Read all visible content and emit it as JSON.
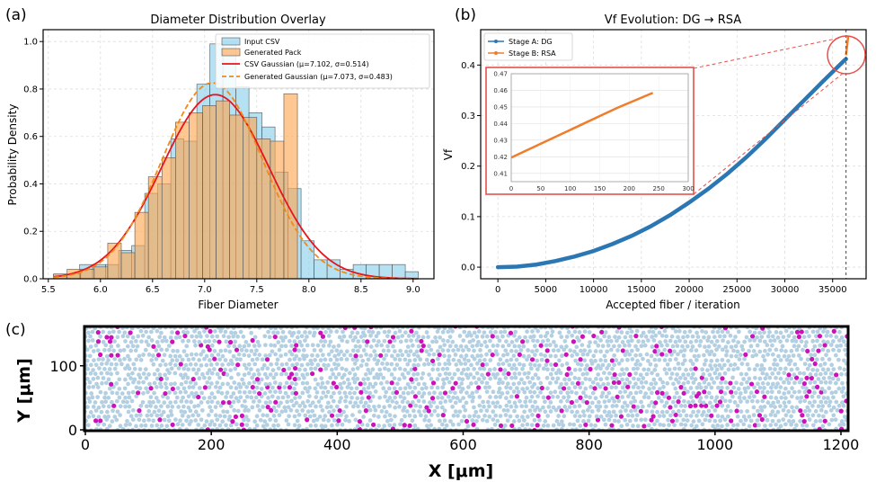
{
  "colors": {
    "input_csv": "#87ceeb",
    "generated_pack": "#ffa54f",
    "csv_gaussian": "#e8141c",
    "gen_gaussian": "#ee8b1a",
    "stage_a": "#2a77b4",
    "stage_b": "#ef7d2b",
    "zoom": "#e8504a",
    "fiber": "#b3cfe2",
    "fiber_highlight": "#cc11bb"
  },
  "chart_data": [
    {
      "panel_label": "(a)",
      "type": "bar",
      "title": "Diameter Distribution Overlay",
      "xlabel": "Fiber Diameter",
      "ylabel": "Probability Density",
      "xlim": [
        5.45,
        9.2
      ],
      "ylim": [
        0,
        1.05
      ],
      "xticks": [
        5.5,
        6.0,
        6.5,
        7.0,
        7.5,
        8.0,
        8.5,
        9.0
      ],
      "xtick_labels": [
        "5.5",
        "6.0",
        "6.5",
        "7.0",
        "7.5",
        "8.0",
        "8.5",
        "9.0"
      ],
      "yticks": [
        0.0,
        0.2,
        0.4,
        0.6,
        0.8,
        1.0
      ],
      "ytick_labels": [
        "0.0",
        "0.2",
        "0.4",
        "0.6",
        "0.8",
        "1.0"
      ],
      "grid": true,
      "legend_position": "top-right",
      "legend": [
        "Input CSV",
        "Generated Pack",
        "CSV Gaussian (μ=7.102, σ=0.514)",
        "Generated Gaussian (μ=7.073, σ=0.483)"
      ],
      "series": [
        {
          "name": "Input CSV",
          "bin_edges": [
            5.55,
            5.675,
            5.8,
            5.925,
            6.05,
            6.175,
            6.3,
            6.425,
            6.55,
            6.675,
            6.8,
            6.925,
            7.05,
            7.175,
            7.3,
            7.425,
            7.55,
            7.675,
            7.8,
            7.925,
            8.05,
            8.175,
            8.3,
            8.425,
            8.55,
            8.675,
            8.8,
            8.925,
            9.05
          ],
          "values": [
            0.02,
            0.02,
            0.06,
            0.06,
            0.06,
            0.12,
            0.14,
            0.36,
            0.4,
            0.59,
            0.58,
            0.82,
            0.99,
            1.0,
            0.81,
            0.7,
            0.64,
            0.45,
            0.38,
            0.16,
            0.08,
            0.08,
            0.04,
            0.06,
            0.06,
            0.06,
            0.06,
            0.03
          ]
        },
        {
          "name": "Generated Pack",
          "bin_edges": [
            5.55,
            5.68,
            5.81,
            5.94,
            6.07,
            6.2,
            6.33,
            6.46,
            6.59,
            6.72,
            6.85,
            6.98,
            7.11,
            7.24,
            7.37,
            7.5,
            7.63,
            7.76,
            7.89
          ],
          "values": [
            0.02,
            0.04,
            0.04,
            0.05,
            0.15,
            0.11,
            0.28,
            0.43,
            0.51,
            0.66,
            0.7,
            0.73,
            0.75,
            0.69,
            0.68,
            0.59,
            0.58,
            0.78
          ]
        },
        {
          "name": "CSV Gaussian (μ=7.102, σ=0.514)",
          "mu": 7.102,
          "sigma": 0.514
        },
        {
          "name": "Generated Gaussian (μ=7.073, σ=0.483)",
          "mu": 7.073,
          "sigma": 0.483
        }
      ]
    },
    {
      "panel_label": "(b)",
      "type": "line",
      "title": "Vf Evolution: DG → RSA",
      "xlabel": "Accepted fiber / iteration",
      "ylabel": "Vf",
      "xlim": [
        -1800,
        38500
      ],
      "ylim": [
        -0.023,
        0.47
      ],
      "xticks": [
        0,
        5000,
        10000,
        15000,
        20000,
        25000,
        30000,
        35000
      ],
      "xtick_labels": [
        "0",
        "5000",
        "10000",
        "15000",
        "20000",
        "25000",
        "30000",
        "35000"
      ],
      "yticks": [
        0.0,
        0.1,
        0.2,
        0.3,
        0.4
      ],
      "ytick_labels": [
        "0.0",
        "0.1",
        "0.2",
        "0.3",
        "0.4"
      ],
      "grid": true,
      "legend_position": "top-left",
      "legend": [
        "Stage A: DG",
        "Stage B: RSA"
      ],
      "vertical_marker_x": 36400,
      "series": [
        {
          "name": "Stage A: DG",
          "x": [
            0,
            2000,
            4000,
            6000,
            8000,
            10000,
            12000,
            14000,
            16000,
            18000,
            20000,
            22000,
            24000,
            26000,
            28000,
            30000,
            32000,
            34000,
            36000,
            36400
          ],
          "values": [
            0.0,
            0.001,
            0.005,
            0.012,
            0.021,
            0.032,
            0.046,
            0.062,
            0.081,
            0.103,
            0.128,
            0.155,
            0.185,
            0.218,
            0.254,
            0.292,
            0.33,
            0.368,
            0.405,
            0.412
          ]
        },
        {
          "name": "Stage B: RSA",
          "x": [
            36400,
            36460,
            36520,
            36580,
            36640
          ],
          "values": [
            0.4195,
            0.4295,
            0.4395,
            0.4495,
            0.4585
          ]
        }
      ],
      "inset": {
        "xlim": [
          0,
          300
        ],
        "ylim": [
          0.405,
          0.47
        ],
        "xticks": [
          0,
          50,
          100,
          150,
          200,
          250,
          300
        ],
        "xtick_labels": [
          "0",
          "50",
          "100",
          "150",
          "200",
          "250",
          "300"
        ],
        "yticks": [
          0.41,
          0.42,
          0.43,
          0.44,
          0.45,
          0.46,
          0.47
        ],
        "ytick_labels": [
          "0.41",
          "0.42",
          "0.43",
          "0.44",
          "0.45",
          "0.46",
          "0.47"
        ],
        "series": {
          "name": "Stage B: RSA",
          "x": [
            0,
            60,
            120,
            180,
            240
          ],
          "values": [
            0.4195,
            0.4295,
            0.4395,
            0.4495,
            0.4585
          ]
        }
      }
    },
    {
      "panel_label": "(c)",
      "type": "scatter",
      "xlabel": "X [μm]",
      "ylabel": "Y [μm]",
      "xlim": [
        0,
        1210
      ],
      "ylim": [
        0,
        160
      ],
      "xticks": [
        0,
        200,
        400,
        600,
        800,
        1000,
        1200
      ],
      "xtick_labels": [
        "0",
        "200",
        "400",
        "600",
        "800",
        "1000",
        "1200"
      ],
      "yticks": [
        0,
        100
      ],
      "ytick_labels": [
        "0",
        "100"
      ],
      "grid": false,
      "fiber_diameter_um": 7.1,
      "series": [
        {
          "name": "fibers",
          "count_approx": 2600
        },
        {
          "name": "highlighted fibers",
          "count_approx": 210
        }
      ]
    }
  ]
}
